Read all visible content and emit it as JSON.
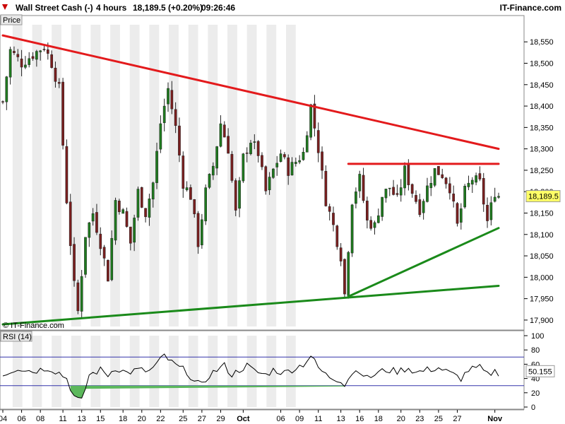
{
  "header": {
    "instrument": "Wall Street Cash (-)",
    "timeframe": "4 hours",
    "price_change": "18,189.5 (+0.20%)",
    "time": "09:26:46",
    "site": "IT-Finance.com"
  },
  "price_panel": {
    "label": "Price",
    "watermark": "© IT-Finance.com",
    "last_price_label": "18,189.5"
  },
  "rsi_panel": {
    "label": "RSI (14)",
    "last_value_label": "50.155"
  },
  "colors": {
    "up_candle": "#1f7a1f",
    "down_candle": "#7a1f1f",
    "resistance": "#e31a1c",
    "support": "#1a8a1a",
    "rsi_band": "#3333aa",
    "rsi_oversold_fill": "#5cb85c",
    "price_tag_bg": "#ffff66",
    "band_gray": "#ececec"
  },
  "chart_data": [
    {
      "type": "candlestick",
      "title": "",
      "ylim": [
        17885,
        18590
      ],
      "y_ticks": [
        "17,900",
        "17,950",
        "18,000",
        "18,050",
        "18,100",
        "18,150",
        "18,200",
        "18,250",
        "18,300",
        "18,350",
        "18,400",
        "18,450",
        "18,500",
        "18,550"
      ],
      "y_tick_values": [
        17900,
        17950,
        18000,
        18050,
        18100,
        18150,
        18200,
        18250,
        18300,
        18350,
        18400,
        18450,
        18500,
        18550
      ],
      "x_labels": [
        "04",
        "06",
        "08",
        "11",
        "13",
        "15",
        "18",
        "20",
        "22",
        "25",
        "27",
        "29",
        "Oct",
        "06",
        "09",
        "11",
        "13",
        "16",
        "18",
        "20",
        "23",
        "25",
        "27",
        "Nov"
      ],
      "x_label_bars": [
        0,
        5,
        10,
        16,
        21,
        26,
        32,
        37,
        42,
        48,
        53,
        58,
        64,
        74,
        79,
        84,
        90,
        95,
        100,
        106,
        111,
        116,
        121,
        131
      ],
      "n_bars": 133,
      "close_path": [
        [
          0,
          18410
        ],
        [
          2,
          18530
        ],
        [
          5,
          18500
        ],
        [
          8,
          18520
        ],
        [
          11,
          18540
        ],
        [
          13,
          18500
        ],
        [
          15,
          18440
        ],
        [
          17,
          18180
        ],
        [
          19,
          17980
        ],
        [
          20,
          17920
        ],
        [
          22,
          18100
        ],
        [
          24,
          18150
        ],
        [
          26,
          18080
        ],
        [
          28,
          18000
        ],
        [
          30,
          18180
        ],
        [
          32,
          18150
        ],
        [
          34,
          18080
        ],
        [
          36,
          18200
        ],
        [
          38,
          18150
        ],
        [
          40,
          18220
        ],
        [
          42,
          18360
        ],
        [
          44,
          18440
        ],
        [
          46,
          18350
        ],
        [
          48,
          18220
        ],
        [
          50,
          18190
        ],
        [
          52,
          18080
        ],
        [
          54,
          18200
        ],
        [
          56,
          18260
        ],
        [
          58,
          18360
        ],
        [
          60,
          18300
        ],
        [
          62,
          18150
        ],
        [
          64,
          18280
        ],
        [
          66,
          18320
        ],
        [
          68,
          18290
        ],
        [
          70,
          18200
        ],
        [
          72,
          18250
        ],
        [
          74,
          18290
        ],
        [
          76,
          18250
        ],
        [
          78,
          18270
        ],
        [
          80,
          18290
        ],
        [
          82,
          18400
        ],
        [
          84,
          18300
        ],
        [
          86,
          18180
        ],
        [
          88,
          18120
        ],
        [
          90,
          18050
        ],
        [
          91,
          17960
        ],
        [
          93,
          18180
        ],
        [
          95,
          18230
        ],
        [
          97,
          18130
        ],
        [
          99,
          18120
        ],
        [
          101,
          18190
        ],
        [
          103,
          18210
        ],
        [
          105,
          18180
        ],
        [
          107,
          18250
        ],
        [
          109,
          18200
        ],
        [
          111,
          18160
        ],
        [
          113,
          18210
        ],
        [
          115,
          18250
        ],
        [
          117,
          18240
        ],
        [
          119,
          18210
        ],
        [
          121,
          18120
        ],
        [
          123,
          18200
        ],
        [
          125,
          18230
        ],
        [
          127,
          18220
        ],
        [
          129,
          18130
        ],
        [
          131,
          18200
        ],
        [
          132,
          18190
        ]
      ],
      "trendlines": [
        {
          "color": "resistance",
          "start": [
            0,
            18565
          ],
          "end": [
            132,
            18300
          ]
        },
        {
          "color": "resistance",
          "start": [
            92,
            18265
          ],
          "end": [
            132,
            18265
          ]
        },
        {
          "color": "support",
          "start": [
            0,
            17890
          ],
          "end": [
            132,
            17980
          ]
        },
        {
          "color": "support",
          "start": [
            92,
            17955
          ],
          "end": [
            132,
            18115
          ]
        }
      ],
      "last_price": 18189.5
    },
    {
      "type": "line",
      "title": "",
      "ylim": [
        0,
        100
      ],
      "y_ticks": [
        "0",
        "20",
        "40",
        "60",
        "80",
        "100"
      ],
      "y_tick_values": [
        0,
        20,
        40,
        60,
        80,
        100
      ],
      "bands": [
        30,
        70
      ],
      "values_path": [
        [
          0,
          45
        ],
        [
          4,
          55
        ],
        [
          8,
          50
        ],
        [
          12,
          55
        ],
        [
          15,
          48
        ],
        [
          17,
          40
        ],
        [
          19,
          15
        ],
        [
          20,
          10
        ],
        [
          21,
          8
        ],
        [
          23,
          45
        ],
        [
          26,
          52
        ],
        [
          28,
          45
        ],
        [
          30,
          55
        ],
        [
          33,
          48
        ],
        [
          36,
          52
        ],
        [
          39,
          50
        ],
        [
          41,
          60
        ],
        [
          43,
          72
        ],
        [
          45,
          62
        ],
        [
          47,
          55
        ],
        [
          49,
          50
        ],
        [
          51,
          35
        ],
        [
          53,
          30
        ],
        [
          55,
          45
        ],
        [
          57,
          52
        ],
        [
          59,
          58
        ],
        [
          61,
          45
        ],
        [
          63,
          52
        ],
        [
          65,
          58
        ],
        [
          67,
          50
        ],
        [
          70,
          45
        ],
        [
          72,
          52
        ],
        [
          75,
          48
        ],
        [
          78,
          55
        ],
        [
          80,
          60
        ],
        [
          82,
          72
        ],
        [
          84,
          55
        ],
        [
          86,
          45
        ],
        [
          88,
          40
        ],
        [
          90,
          38
        ],
        [
          91,
          32
        ],
        [
          93,
          48
        ],
        [
          95,
          52
        ],
        [
          97,
          40
        ],
        [
          100,
          48
        ],
        [
          102,
          52
        ],
        [
          105,
          50
        ],
        [
          108,
          55
        ],
        [
          110,
          48
        ],
        [
          113,
          52
        ],
        [
          116,
          55
        ],
        [
          118,
          50
        ],
        [
          120,
          45
        ],
        [
          122,
          40
        ],
        [
          124,
          52
        ],
        [
          127,
          55
        ],
        [
          129,
          45
        ],
        [
          131,
          50
        ],
        [
          132,
          48
        ]
      ],
      "last_value": 50.155
    }
  ]
}
